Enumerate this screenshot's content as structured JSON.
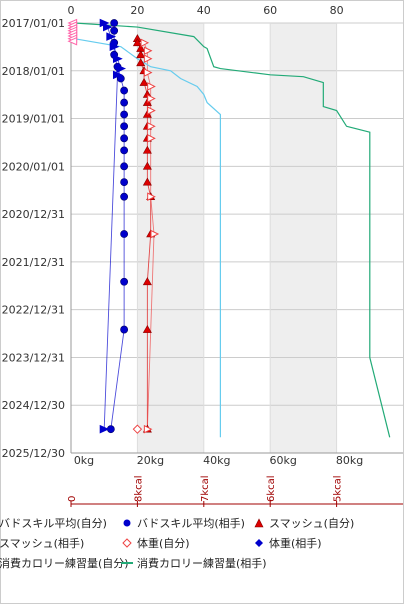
{
  "chart_data": {
    "type": "scatter",
    "title": "",
    "x_top_ticks": [
      "0",
      "20",
      "40",
      "60",
      "80"
    ],
    "x_top_range": [
      0,
      100
    ],
    "x_bottom_ticks": [
      "0kg",
      "20kg",
      "40kg",
      "60kg",
      "80kg"
    ],
    "x_bottom_range_kg": [
      0,
      100
    ],
    "y_ticks": [
      "2017/01/01",
      "2018/01/01",
      "2019/01/01",
      "2020/01/01",
      "2020/12/31",
      "2021/12/31",
      "2022/12/31",
      "2023/12/31",
      "2024/12/30",
      "2025/12/30"
    ],
    "y_range": [
      "2017/01/01",
      "2025/12/30"
    ],
    "grid": true,
    "shaded_bands_kg": [
      [
        20,
        40
      ],
      [
        60,
        80
      ]
    ],
    "kcal_axis": {
      "labels": [
        "0",
        "8kcal",
        "7kcal",
        "6kcal",
        "5kcal"
      ],
      "color": "#a00000"
    },
    "series": [
      {
        "name": "バドスキル平均(自分)",
        "color": "#ff66aa",
        "marker": "arrow-left",
        "points": [
          {
            "x": 0.5,
            "y": "2017/01/01"
          },
          {
            "x": 0.5,
            "y": "2017/01/20"
          },
          {
            "x": 0.5,
            "y": "2017/02/10"
          },
          {
            "x": 0.5,
            "y": "2017/03/01"
          },
          {
            "x": 0.5,
            "y": "2017/03/20"
          },
          {
            "x": 0.5,
            "y": "2017/04/10"
          },
          {
            "x": 0.5,
            "y": "2017/05/01"
          },
          {
            "x": 0.5,
            "y": "2017/05/20"
          }
        ]
      },
      {
        "name": "バドスキル平均(相手)",
        "color": "#0000cc",
        "marker": "circle",
        "points": [
          {
            "x": 13,
            "y": "2017/01/01"
          },
          {
            "x": 13,
            "y": "2017/03/01"
          },
          {
            "x": 13,
            "y": "2017/06/01"
          },
          {
            "x": 13,
            "y": "2017/09/01"
          },
          {
            "x": 14,
            "y": "2017/12/01"
          },
          {
            "x": 15,
            "y": "2018/03/01"
          },
          {
            "x": 16,
            "y": "2018/06/01"
          },
          {
            "x": 16,
            "y": "2018/09/01"
          },
          {
            "x": 16,
            "y": "2018/12/01"
          },
          {
            "x": 16,
            "y": "2019/03/01"
          },
          {
            "x": 16,
            "y": "2019/06/01"
          },
          {
            "x": 16,
            "y": "2019/09/01"
          },
          {
            "x": 16,
            "y": "2020/01/01"
          },
          {
            "x": 16,
            "y": "2020/05/01"
          },
          {
            "x": 16,
            "y": "2020/08/20"
          },
          {
            "x": 16,
            "y": "2021/06/01"
          },
          {
            "x": 16,
            "y": "2022/06/01"
          },
          {
            "x": 16,
            "y": "2023/06/01"
          },
          {
            "x": 12,
            "y": "2025/07/01"
          }
        ]
      },
      {
        "name": "スマッシュ(自分)",
        "color": "#dd0000",
        "marker": "triangle",
        "points": [
          {
            "x": 20,
            "y": "2017/05/01"
          },
          {
            "x": 20,
            "y": "2017/06/01"
          },
          {
            "x": 21,
            "y": "2017/07/15"
          },
          {
            "x": 21,
            "y": "2017/09/01"
          },
          {
            "x": 21,
            "y": "2017/11/01"
          },
          {
            "x": 22,
            "y": "2018/01/01"
          },
          {
            "x": 22,
            "y": "2018/04/01"
          },
          {
            "x": 23,
            "y": "2018/07/01"
          },
          {
            "x": 23,
            "y": "2018/09/01"
          },
          {
            "x": 23,
            "y": "2018/12/01"
          },
          {
            "x": 23,
            "y": "2019/03/01"
          },
          {
            "x": 23,
            "y": "2019/06/01"
          },
          {
            "x": 23,
            "y": "2019/09/01"
          },
          {
            "x": 23,
            "y": "2020/01/01"
          },
          {
            "x": 23,
            "y": "2020/05/01"
          },
          {
            "x": 24,
            "y": "2020/08/20"
          },
          {
            "x": 24,
            "y": "2021/06/01"
          },
          {
            "x": 23,
            "y": "2022/06/01"
          },
          {
            "x": 23,
            "y": "2023/06/01"
          },
          {
            "x": 23,
            "y": "2025/07/01"
          }
        ]
      },
      {
        "name": "スマッシュ(相手)",
        "color": "#ee4444",
        "marker": "arrow-right-open",
        "points": [
          {
            "x": 22,
            "y": "2017/06/01"
          },
          {
            "x": 23,
            "y": "2017/08/01"
          },
          {
            "x": 23,
            "y": "2017/10/01"
          },
          {
            "x": 23,
            "y": "2018/01/15"
          },
          {
            "x": 24,
            "y": "2018/05/01"
          },
          {
            "x": 24,
            "y": "2018/08/01"
          },
          {
            "x": 24,
            "y": "2018/11/01"
          },
          {
            "x": 24,
            "y": "2019/03/01"
          },
          {
            "x": 24,
            "y": "2019/06/01"
          },
          {
            "x": 24,
            "y": "2020/08/20"
          },
          {
            "x": 25,
            "y": "2021/06/01"
          },
          {
            "x": 23,
            "y": "2025/07/01"
          }
        ]
      },
      {
        "name": "体重(自分)",
        "color": "#ee4444",
        "marker": "diamond-open",
        "points": [
          {
            "x": 20,
            "y": "2025/07/01"
          }
        ]
      },
      {
        "name": "体重(相手)",
        "color": "#0000cc",
        "marker": "arrow-right",
        "points": [
          {
            "x": 10,
            "y": "2017/01/01"
          },
          {
            "x": 11,
            "y": "2017/02/01"
          },
          {
            "x": 12,
            "y": "2017/04/15"
          },
          {
            "x": 13,
            "y": "2017/07/01"
          },
          {
            "x": 14,
            "y": "2017/10/01"
          },
          {
            "x": 15,
            "y": "2017/12/15"
          },
          {
            "x": 14,
            "y": "2018/02/01"
          },
          {
            "x": 10,
            "y": "2025/07/01"
          }
        ]
      },
      {
        "name": "消費カロリー練習量(自分)",
        "color": "#66ccee",
        "marker": "line",
        "points": [
          {
            "x": 1,
            "y": "2017/05/01"
          },
          {
            "x": 15,
            "y": "2017/07/01"
          },
          {
            "x": 20,
            "y": "2017/10/01"
          },
          {
            "x": 24,
            "y": "2017/12/01"
          },
          {
            "x": 30,
            "y": "2018/01/01"
          },
          {
            "x": 33,
            "y": "2018/03/01"
          },
          {
            "x": 38,
            "y": "2018/05/01"
          },
          {
            "x": 40,
            "y": "2018/07/01"
          },
          {
            "x": 41,
            "y": "2018/09/01"
          },
          {
            "x": 45,
            "y": "2018/12/01"
          },
          {
            "x": 45,
            "y": "2025/09/01"
          }
        ]
      },
      {
        "name": "消費カロリー練習量(相手)",
        "color": "#22aa77",
        "marker": "line",
        "points": [
          {
            "x": 1,
            "y": "2017/01/01"
          },
          {
            "x": 20,
            "y": "2017/02/01"
          },
          {
            "x": 37,
            "y": "2017/04/15"
          },
          {
            "x": 40,
            "y": "2017/07/01"
          },
          {
            "x": 41,
            "y": "2017/07/15"
          },
          {
            "x": 43,
            "y": "2017/12/01"
          },
          {
            "x": 45,
            "y": "2017/12/15"
          },
          {
            "x": 60,
            "y": "2018/02/01"
          },
          {
            "x": 70,
            "y": "2018/02/15"
          },
          {
            "x": 76,
            "y": "2018/04/01"
          },
          {
            "x": 76,
            "y": "2018/10/01"
          },
          {
            "x": 80,
            "y": "2018/11/01"
          },
          {
            "x": 83,
            "y": "2019/03/01"
          },
          {
            "x": 90,
            "y": "2019/04/15"
          },
          {
            "x": 90,
            "y": "2024/01/01"
          },
          {
            "x": 96,
            "y": "2025/09/01"
          }
        ]
      }
    ]
  },
  "legend": [
    {
      "label": "バドスキル平均(自分)",
      "symbol": "none"
    },
    {
      "label": "バドスキル平均(相手)",
      "symbol": "circle",
      "color": "#0000cc"
    },
    {
      "label": "スマッシュ(自分)",
      "symbol": "triangle",
      "color": "#dd0000"
    },
    {
      "label": "スマッシュ(相手)",
      "symbol": "none"
    },
    {
      "label": "体重(自分)",
      "symbol": "diamond-open",
      "color": "#ee4444"
    },
    {
      "label": "体重(相手)",
      "symbol": "diamond",
      "color": "#0000cc"
    },
    {
      "label": "消費カロリー練習量(自分)",
      "symbol": "none"
    },
    {
      "label": "消費カロリー練習量(相手)",
      "symbol": "line",
      "color": "#22aa77"
    }
  ]
}
